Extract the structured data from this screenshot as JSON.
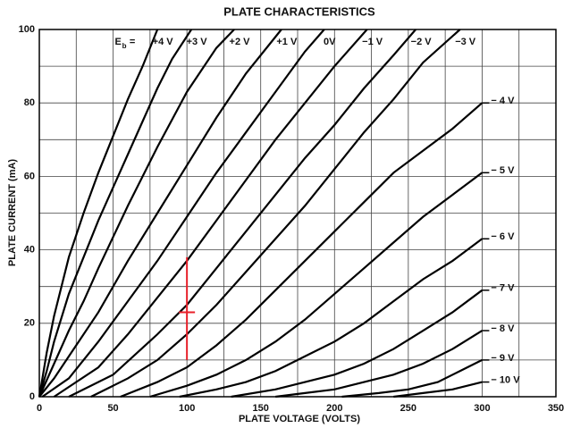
{
  "chart_data": {
    "type": "line",
    "title": "PLATE CHARACTERISTICS",
    "xlabel": "PLATE VOLTAGE (VOLTS)",
    "ylabel": "PLATE CURRENT (mA)",
    "xlim": [
      0,
      350
    ],
    "ylim": [
      0,
      100
    ],
    "xticks": [
      0,
      50,
      100,
      150,
      200,
      250,
      300,
      350
    ],
    "yticks": [
      0,
      20,
      40,
      60,
      80,
      100
    ],
    "x_minor_grid": [
      25,
      75,
      125,
      175,
      225,
      275,
      325
    ],
    "y_minor_grid": [
      10,
      30,
      50,
      70,
      90
    ],
    "grid": true,
    "color": "#000000",
    "annotations": [
      "E",
      "b",
      "="
    ],
    "series": [
      {
        "name": "+4 V",
        "x": [
          0,
          5,
          10,
          20,
          30,
          40,
          50,
          60,
          70,
          80
        ],
        "values": [
          0,
          12,
          22,
          38,
          50,
          61,
          71,
          81,
          90,
          100
        ]
      },
      {
        "name": "+3 V",
        "x": [
          0,
          5,
          10,
          20,
          30,
          40,
          50,
          60,
          70,
          80,
          90,
          103
        ],
        "values": [
          0,
          7,
          15,
          28,
          38,
          48,
          57,
          66,
          75,
          84,
          92,
          100
        ]
      },
      {
        "name": "+2 V",
        "x": [
          0,
          10,
          20,
          30,
          40,
          60,
          80,
          100,
          120,
          132
        ],
        "values": [
          0,
          9,
          18,
          26,
          35,
          52,
          68,
          83,
          95,
          100
        ]
      },
      {
        "name": "+1 V",
        "x": [
          0,
          10,
          20,
          40,
          60,
          80,
          100,
          120,
          140,
          164
        ],
        "values": [
          0,
          5,
          11,
          23,
          37,
          50,
          63,
          76,
          88,
          100
        ]
      },
      {
        "name": "0V",
        "x": [
          2,
          20,
          40,
          60,
          80,
          100,
          120,
          140,
          160,
          180,
          193
        ],
        "values": [
          0,
          5,
          15,
          26,
          37,
          49,
          61,
          72,
          83,
          94,
          100
        ]
      },
      {
        "name": "−1 V",
        "x": [
          10,
          40,
          60,
          80,
          100,
          120,
          140,
          160,
          180,
          200,
          222
        ],
        "values": [
          0,
          8,
          17,
          27,
          37,
          48,
          59,
          70,
          80,
          90,
          100
        ]
      },
      {
        "name": "−2 V",
        "x": [
          20,
          50,
          80,
          100,
          120,
          140,
          160,
          180,
          200,
          220,
          240,
          255
        ],
        "values": [
          0,
          6,
          17,
          25,
          35,
          45,
          55,
          65,
          74,
          84,
          93,
          100
        ]
      },
      {
        "name": "−3 V",
        "x": [
          35,
          60,
          80,
          100,
          120,
          140,
          160,
          180,
          200,
          220,
          240,
          260,
          285
        ],
        "values": [
          0,
          5,
          10,
          17,
          25,
          34,
          43,
          52,
          62,
          72,
          81,
          91,
          100
        ]
      },
      {
        "name": "− 4 V",
        "x": [
          55,
          80,
          100,
          120,
          140,
          160,
          180,
          200,
          220,
          240,
          260,
          280,
          300
        ],
        "values": [
          0,
          4,
          8,
          14,
          21,
          29,
          37,
          45,
          53,
          61,
          67,
          73,
          80
        ]
      },
      {
        "name": "− 5 V",
        "x": [
          75,
          100,
          120,
          140,
          160,
          180,
          200,
          220,
          240,
          260,
          280,
          300
        ],
        "values": [
          0,
          3,
          6,
          10,
          15,
          21,
          28,
          35,
          42,
          49,
          55,
          61
        ]
      },
      {
        "name": "− 6 V",
        "x": [
          95,
          120,
          140,
          160,
          180,
          200,
          220,
          240,
          260,
          280,
          300
        ],
        "values": [
          0,
          2,
          4,
          7,
          11,
          15,
          20,
          26,
          32,
          37,
          43
        ]
      },
      {
        "name": "− 7 V",
        "x": [
          130,
          160,
          180,
          200,
          220,
          240,
          260,
          280,
          300
        ],
        "values": [
          0,
          2,
          4,
          6,
          9,
          13,
          18,
          23,
          29
        ]
      },
      {
        "name": "− 8 V",
        "x": [
          160,
          180,
          200,
          220,
          240,
          260,
          280,
          300
        ],
        "values": [
          0,
          1,
          2,
          4,
          6,
          9,
          13,
          18
        ]
      },
      {
        "name": "− 9 V",
        "x": [
          205,
          230,
          250,
          270,
          285,
          300
        ],
        "values": [
          0,
          1,
          2,
          4,
          7,
          10
        ]
      },
      {
        "name": "− 10 V",
        "x": [
          240,
          260,
          280,
          300
        ],
        "values": [
          0,
          1,
          2,
          4
        ]
      }
    ],
    "operating_point": {
      "x": 100,
      "y": 23,
      "low": 10,
      "high": 38,
      "color": "#e8202a"
    }
  }
}
